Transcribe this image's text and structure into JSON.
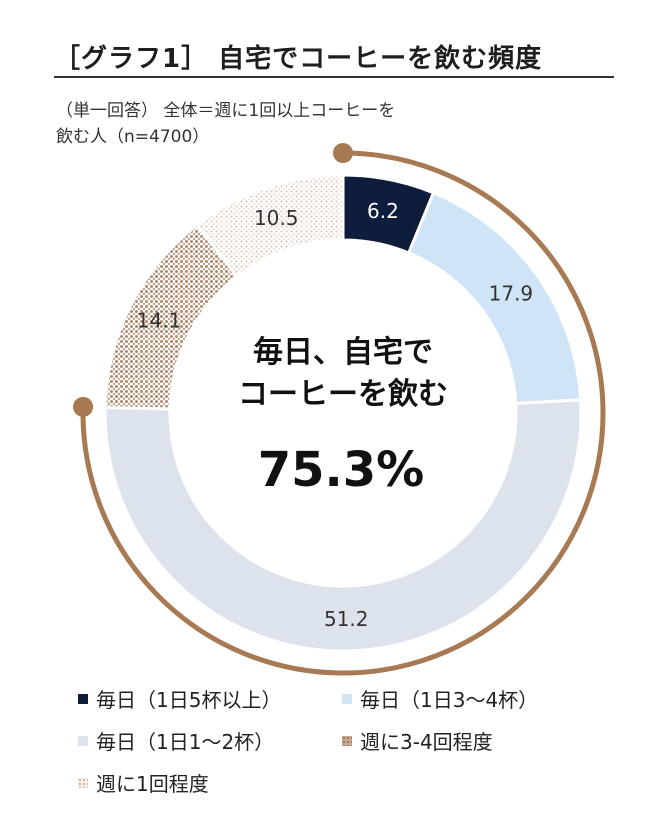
{
  "title": "［グラフ1］ 自宅でコーヒーを飲む頻度",
  "subtitle": {
    "line1": "（単一回答） 全体＝週に1回以上コーヒーを",
    "line2": "飲む人（n=4700）"
  },
  "chart_data": {
    "type": "pie",
    "donut": true,
    "title": "自宅でコーヒーを飲む頻度",
    "unit": "%",
    "start": "12 o'clock, clockwise",
    "slices": [
      {
        "label": "毎日（1日5杯以上）",
        "value": 6.2,
        "color": "#0f1d3d",
        "label_color": "#ffffff",
        "pattern": "solid"
      },
      {
        "label": "毎日（1日3〜4杯）",
        "value": 17.9,
        "color": "#cfe4f7",
        "label_color": "#333333",
        "pattern": "solid"
      },
      {
        "label": "毎日（1日1〜2杯）",
        "value": 51.2,
        "color": "#dde3ec",
        "label_color": "#333333",
        "pattern": "solid"
      },
      {
        "label": "週に3-4回程度",
        "value": 14.1,
        "color": "#c8a891",
        "label_color": "#333333",
        "pattern": "dots-dense"
      },
      {
        "label": "週に1回程度",
        "value": 10.5,
        "color": "#e2cfc0",
        "label_color": "#333333",
        "pattern": "dots-sparse"
      }
    ],
    "highlight": {
      "covers": "毎日（3カテゴリ合計）",
      "line1": "毎日、自宅で",
      "line2": "コーヒーを飲む",
      "value": "75.3%",
      "arc_color": "#a87a53"
    }
  }
}
